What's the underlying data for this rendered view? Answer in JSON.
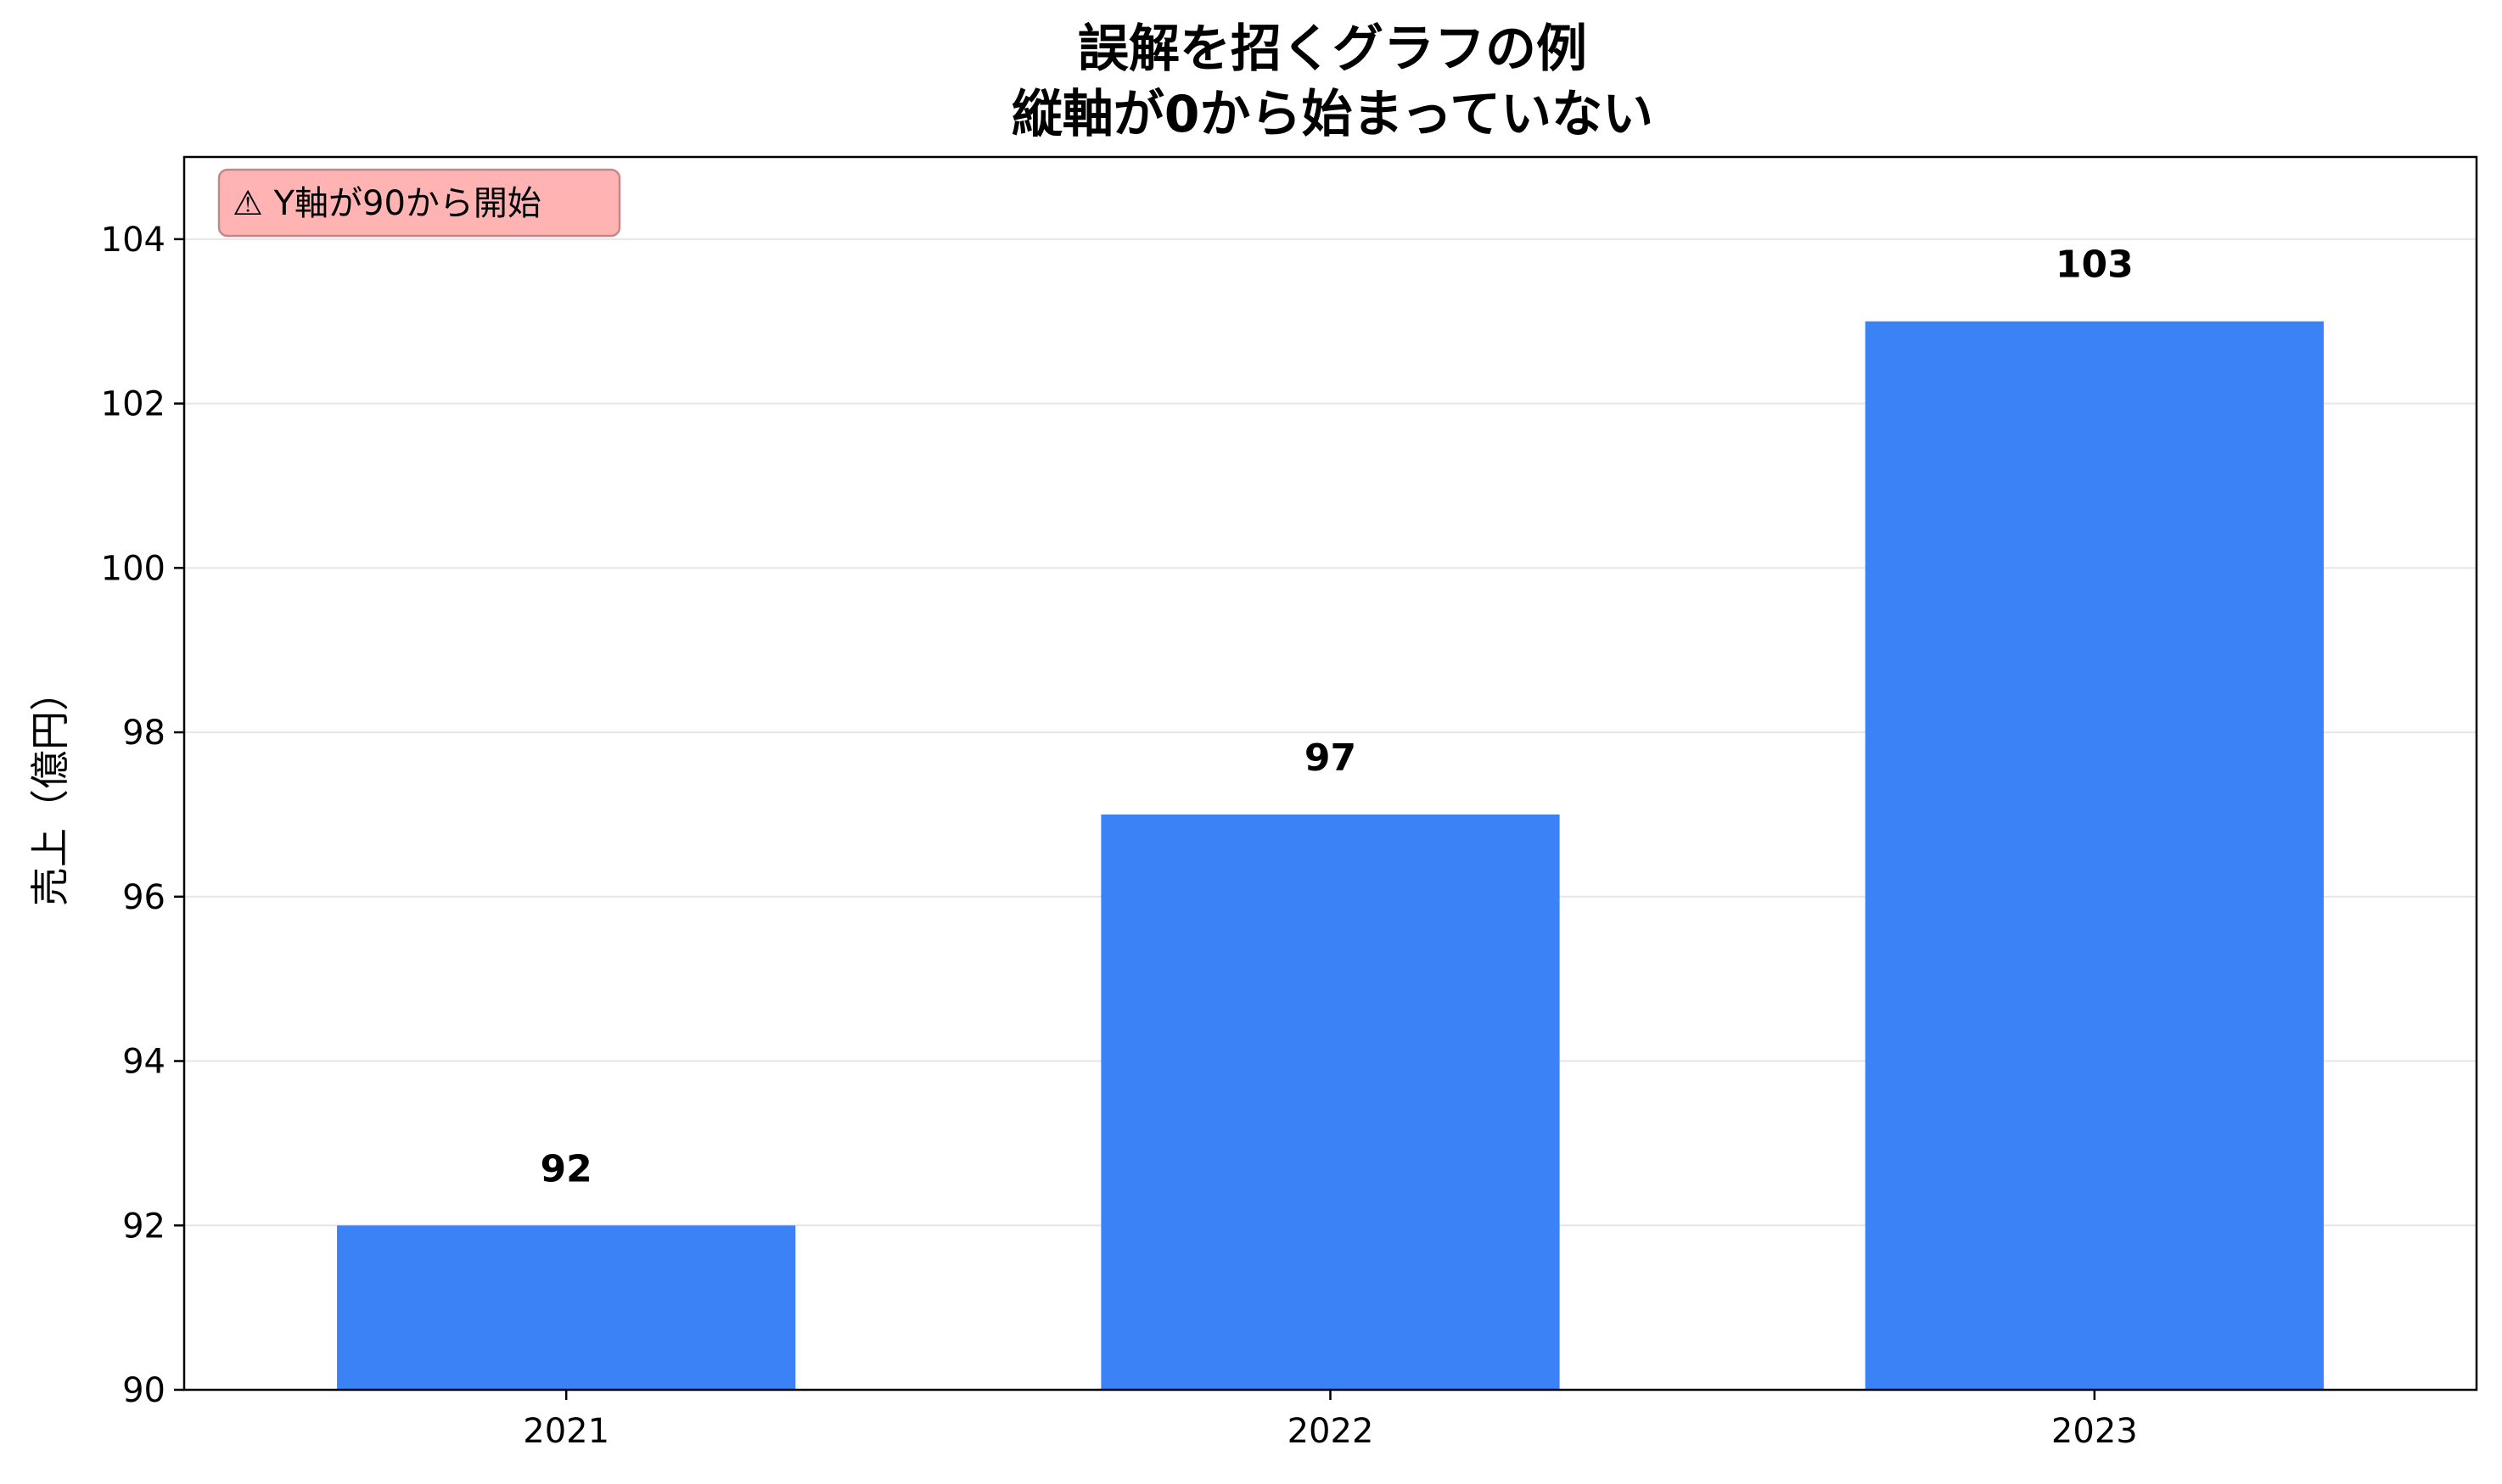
{
  "chart_data": {
    "type": "bar",
    "title_lines": [
      "誤解を招くグラフの例",
      "縦軸が0から始まっていない"
    ],
    "xlabel": "",
    "ylabel": "売上（億円）",
    "categories": [
      "2021",
      "2022",
      "2023"
    ],
    "values": [
      92,
      97,
      103
    ],
    "data_labels": [
      "92",
      "97",
      "103"
    ],
    "ylim": [
      90,
      105
    ],
    "yticks": [
      90,
      92,
      94,
      96,
      98,
      100,
      102,
      104
    ],
    "grid": "horizontal",
    "legend": "none",
    "annotation": {
      "text": "⚠ Y軸が90から開始",
      "placement": "top-left"
    },
    "colors": {
      "bar": "#3b82f6",
      "annotation_bg": "#ffb3b3",
      "annotation_border": "#c08a8a",
      "grid": "#e6e6e6",
      "axis": "#000000"
    }
  }
}
